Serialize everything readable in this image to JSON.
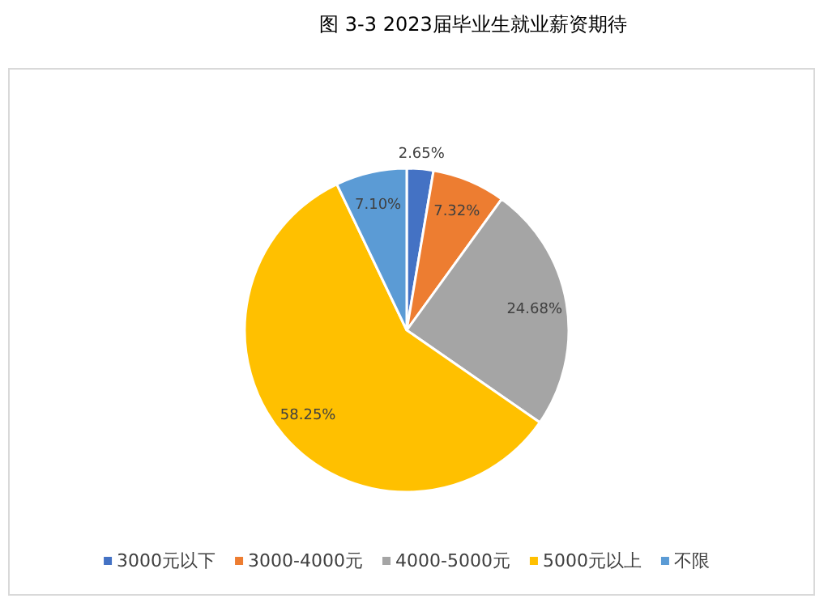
{
  "chart_data": {
    "type": "pie",
    "title": "图 3-3 2023届毕业生就业薪资期待",
    "categories": [
      "3000元以下",
      "3000-4000元",
      "4000-5000元",
      "5000元以上",
      "不限"
    ],
    "values": [
      2.65,
      7.32,
      24.68,
      58.25,
      7.1
    ],
    "colors": [
      "#4472c4",
      "#ed7d31",
      "#a5a5a5",
      "#ffc000",
      "#5b9bd5"
    ],
    "value_labels": [
      "2.65%",
      "7.32%",
      "24.68%",
      "58.25%",
      "7.10%"
    ],
    "legend": "bottom"
  }
}
